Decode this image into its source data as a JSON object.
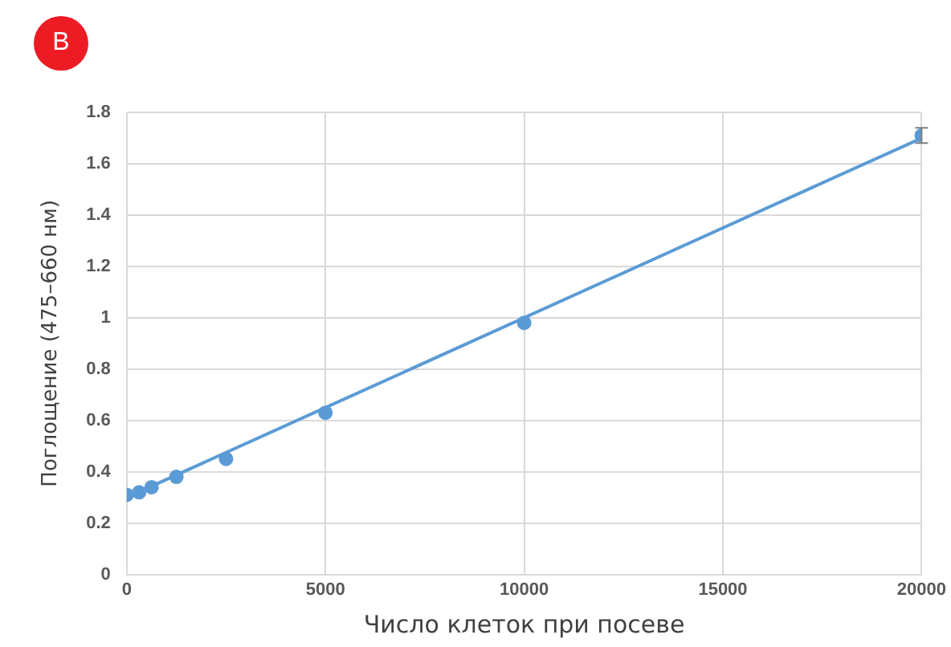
{
  "chart_data": {
    "type": "scatter",
    "xlabel": "Число клеток при посеве",
    "ylabel": "Поглощение (475–660 нм)",
    "annotations": [
      "В"
    ],
    "xlim": [
      0,
      20000
    ],
    "xticks": [
      0,
      5000,
      10000,
      15000,
      20000
    ],
    "ylim": [
      0,
      1.8
    ],
    "yticks": [
      0,
      0.2,
      0.4,
      0.6,
      0.8,
      1,
      1.2,
      1.4,
      1.6,
      1.8
    ],
    "grid": true,
    "legend": false,
    "marker": "circle",
    "series": [
      {
        "color": "#5b9bd5",
        "x": [
          0,
          312.5,
          625,
          1250,
          2500,
          5000,
          10000,
          20000
        ],
        "values": [
          0.31,
          0.32,
          0.34,
          0.38,
          0.45,
          0.63,
          0.98,
          1.71
        ],
        "errors": [
          null,
          null,
          null,
          null,
          null,
          null,
          null,
          0.03
        ]
      },
      {
        "type": "line",
        "color": "#5b9bd5",
        "x": [
          0,
          20000
        ],
        "values": [
          0.3,
          1.7
        ],
        "marker": "none"
      }
    ]
  }
}
